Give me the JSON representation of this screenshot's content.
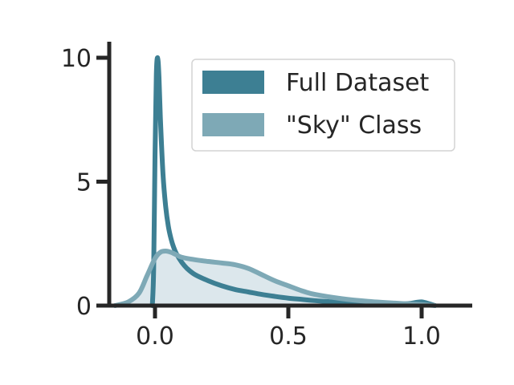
{
  "chart_data": {
    "type": "area",
    "title": "",
    "xlabel": "",
    "ylabel": "",
    "xlim": [
      -0.2,
      1.18
    ],
    "ylim": [
      0,
      10.5
    ],
    "x_ticks": [
      0.0,
      0.5,
      1.0
    ],
    "x_tick_labels": [
      "0.0",
      "0.5",
      "1.0"
    ],
    "y_ticks": [
      0,
      5,
      10
    ],
    "y_tick_labels": [
      "0",
      "5",
      "10"
    ],
    "grid": false,
    "legend_position": "top-right",
    "series": [
      {
        "name": "Full Dataset",
        "color": "#3d7f93",
        "filled": false,
        "x": [
          -0.01,
          -0.005,
          0.0,
          0.005,
          0.01,
          0.015,
          0.02,
          0.03,
          0.04,
          0.05,
          0.06,
          0.07,
          0.08,
          0.1,
          0.12,
          0.15,
          0.2,
          0.25,
          0.3,
          0.35,
          0.4,
          0.45,
          0.5,
          0.55,
          0.6,
          0.7,
          0.8,
          0.9,
          0.95,
          0.98,
          1.0,
          1.02,
          1.05
        ],
        "values": [
          0.0,
          1.5,
          6.0,
          9.3,
          10.0,
          9.2,
          7.6,
          5.3,
          4.0,
          3.2,
          2.7,
          2.35,
          2.1,
          1.75,
          1.5,
          1.25,
          1.0,
          0.8,
          0.65,
          0.55,
          0.45,
          0.37,
          0.3,
          0.25,
          0.2,
          0.13,
          0.09,
          0.06,
          0.08,
          0.13,
          0.15,
          0.1,
          0.0
        ]
      },
      {
        "name": "\"Sky\" Class",
        "color": "#7ea9b6",
        "filled": true,
        "fill_color": "#dce7ec",
        "x": [
          -0.15,
          -0.1,
          -0.06,
          -0.03,
          0.0,
          0.02,
          0.04,
          0.06,
          0.08,
          0.1,
          0.15,
          0.2,
          0.25,
          0.3,
          0.35,
          0.4,
          0.45,
          0.5,
          0.55,
          0.6,
          0.7,
          0.8,
          0.9,
          1.0,
          1.05
        ],
        "values": [
          0.0,
          0.15,
          0.5,
          1.2,
          1.9,
          2.15,
          2.2,
          2.15,
          2.05,
          1.95,
          1.85,
          1.78,
          1.72,
          1.65,
          1.5,
          1.25,
          1.0,
          0.8,
          0.6,
          0.45,
          0.28,
          0.17,
          0.1,
          0.04,
          0.0
        ]
      }
    ]
  }
}
